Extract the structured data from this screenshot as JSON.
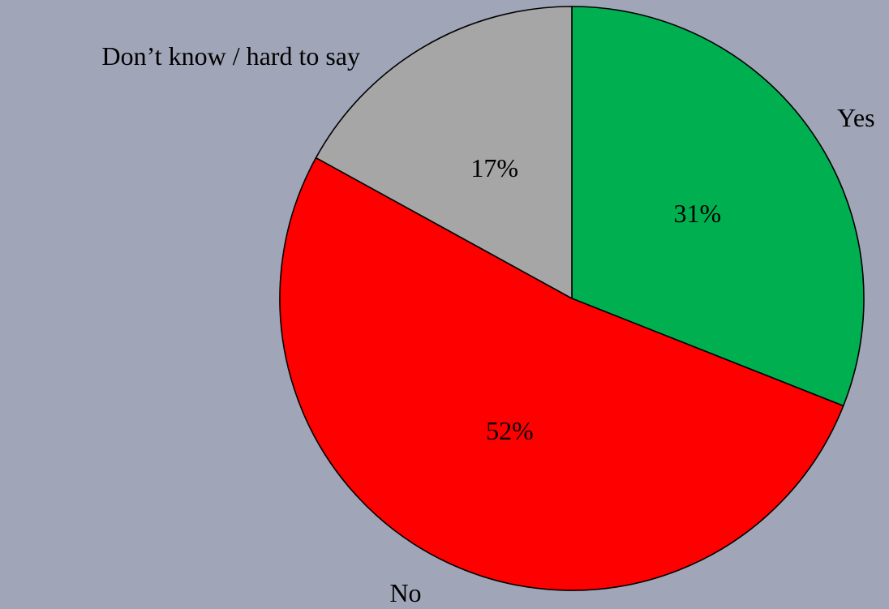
{
  "chart_data": {
    "type": "pie",
    "categories": [
      "Yes",
      "No",
      "Don’t know / hard to say"
    ],
    "values": [
      31,
      52,
      17
    ],
    "value_labels": [
      "31%",
      "52%",
      "17%"
    ],
    "unit": "%",
    "colors": [
      "#00b050",
      "#ff0000",
      "#a6a6a6"
    ],
    "start_angle_deg": 0,
    "direction": "clockwise",
    "legend": "none",
    "background": "#a0a5b8"
  }
}
